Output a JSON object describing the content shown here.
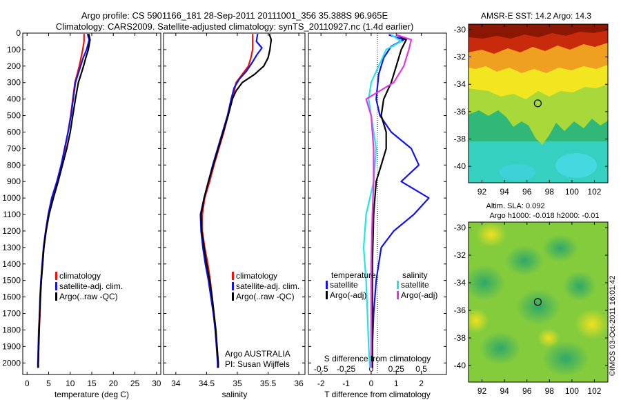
{
  "header": {
    "line1": "Argo profile: CS 5901166_181 28-Sep-2011 20111001_356 35.388S 96.965E",
    "line2": "Climatology: CARS2009. Satellite-adjusted climatology: synTS_20110927.nc (1.4d earlier)"
  },
  "side_label": "©IMOS 03-Oct-2011 16:01:42",
  "colors": {
    "climatology": "#ee1111",
    "satellite": "#1111ee",
    "argo": "#000000",
    "salinity_satellite": "#22e6e6",
    "salinity_argo": "#e633e6"
  },
  "chart_data": [
    {
      "type": "line",
      "name": "temperature-profile",
      "xlabel": "temperature (deg C)",
      "xlim": [
        -1,
        31
      ],
      "ylim": [
        2070,
        0
      ],
      "xticks": [
        0,
        5,
        10,
        15,
        20,
        25,
        30
      ],
      "yticks": [
        0,
        100,
        200,
        300,
        400,
        500,
        600,
        700,
        800,
        900,
        1000,
        1100,
        1200,
        1300,
        1400,
        1500,
        1600,
        1700,
        1800,
        1900,
        2000
      ],
      "legend": [
        "climatology",
        "satellite-adj. clim.",
        "Argo(..raw -QC)"
      ],
      "legend_placement": "lower-right",
      "series": [
        {
          "name": "climatology",
          "color_key": "climatology",
          "points": [
            [
              13.2,
              5
            ],
            [
              13.2,
              50
            ],
            [
              12.9,
              100
            ],
            [
              12.5,
              150
            ],
            [
              12.1,
              200
            ],
            [
              11.6,
              250
            ],
            [
              11.1,
              300
            ],
            [
              10.6,
              400
            ],
            [
              10.1,
              500
            ],
            [
              9.5,
              600
            ],
            [
              8.8,
              700
            ],
            [
              8.0,
              800
            ],
            [
              7.0,
              900
            ],
            [
              5.8,
              1000
            ],
            [
              5.0,
              1100
            ],
            [
              4.4,
              1200
            ],
            [
              3.9,
              1300
            ],
            [
              3.6,
              1400
            ],
            [
              3.3,
              1500
            ],
            [
              3.1,
              1600
            ],
            [
              3.0,
              1700
            ],
            [
              2.8,
              1800
            ],
            [
              2.7,
              1900
            ],
            [
              2.6,
              2000
            ],
            [
              2.6,
              2030
            ]
          ]
        },
        {
          "name": "satellite-adj. clim.",
          "color_key": "satellite",
          "points": [
            [
              14.0,
              5
            ],
            [
              14.4,
              40
            ],
            [
              13.8,
              100
            ],
            [
              13.0,
              150
            ],
            [
              12.4,
              200
            ],
            [
              11.8,
              250
            ],
            [
              11.2,
              300
            ],
            [
              10.7,
              400
            ],
            [
              10.2,
              500
            ],
            [
              9.5,
              600
            ],
            [
              8.7,
              700
            ],
            [
              7.9,
              800
            ],
            [
              6.9,
              900
            ],
            [
              5.7,
              1000
            ],
            [
              4.9,
              1100
            ],
            [
              4.3,
              1200
            ],
            [
              3.8,
              1300
            ],
            [
              3.5,
              1400
            ],
            [
              3.2,
              1500
            ],
            [
              3.0,
              1600
            ],
            [
              2.9,
              1700
            ],
            [
              2.7,
              1800
            ],
            [
              2.6,
              1900
            ],
            [
              2.5,
              2000
            ],
            [
              2.5,
              2030
            ]
          ]
        },
        {
          "name": "Argo(..raw -QC)",
          "color_key": "argo",
          "points": [
            [
              14.3,
              5
            ],
            [
              14.6,
              40
            ],
            [
              14.2,
              100
            ],
            [
              13.6,
              150
            ],
            [
              13.1,
              200
            ],
            [
              12.5,
              250
            ],
            [
              11.9,
              300
            ],
            [
              11.2,
              400
            ],
            [
              10.6,
              500
            ],
            [
              10.0,
              600
            ],
            [
              9.2,
              700
            ],
            [
              8.2,
              800
            ],
            [
              7.2,
              900
            ],
            [
              6.1,
              1000
            ],
            [
              5.1,
              1100
            ],
            [
              4.4,
              1200
            ],
            [
              3.9,
              1300
            ],
            [
              3.6,
              1400
            ],
            [
              3.3,
              1500
            ],
            [
              3.1,
              1600
            ],
            [
              2.9,
              1700
            ],
            [
              2.8,
              1800
            ],
            [
              2.7,
              1900
            ],
            [
              2.6,
              2000
            ],
            [
              2.6,
              2030
            ]
          ]
        }
      ]
    },
    {
      "type": "line",
      "name": "salinity-profile",
      "xlabel": "salinity",
      "xlim": [
        33.8,
        36.1
      ],
      "ylim": [
        2070,
        0
      ],
      "xticks": [
        34,
        34.5,
        35,
        35.5,
        36
      ],
      "legend": [
        "climatology",
        "satellite-adj. clim.",
        "Argo(..raw -QC)"
      ],
      "legend_placement": "lower-right",
      "annotation": [
        "Argo AUSTRALIA",
        "PI: Susan Wijffels"
      ],
      "series": [
        {
          "name": "climatology",
          "color_key": "climatology",
          "points": [
            [
              35.25,
              5
            ],
            [
              35.25,
              100
            ],
            [
              35.22,
              150
            ],
            [
              35.18,
              200
            ],
            [
              35.08,
              250
            ],
            [
              34.98,
              300
            ],
            [
              34.92,
              400
            ],
            [
              34.85,
              500
            ],
            [
              34.78,
              600
            ],
            [
              34.7,
              700
            ],
            [
              34.62,
              800
            ],
            [
              34.55,
              900
            ],
            [
              34.47,
              1000
            ],
            [
              34.43,
              1100
            ],
            [
              34.43,
              1200
            ],
            [
              34.47,
              1300
            ],
            [
              34.52,
              1400
            ],
            [
              34.56,
              1500
            ],
            [
              34.59,
              1600
            ],
            [
              34.62,
              1700
            ],
            [
              34.65,
              1800
            ],
            [
              34.67,
              1900
            ],
            [
              34.69,
              2000
            ],
            [
              34.69,
              2030
            ]
          ]
        },
        {
          "name": "satellite-adj. clim.",
          "color_key": "satellite",
          "points": [
            [
              35.33,
              5
            ],
            [
              35.31,
              50
            ],
            [
              35.4,
              90
            ],
            [
              35.32,
              130
            ],
            [
              35.24,
              180
            ],
            [
              35.15,
              230
            ],
            [
              35.03,
              280
            ],
            [
              34.95,
              330
            ],
            [
              34.9,
              400
            ],
            [
              34.84,
              500
            ],
            [
              34.76,
              600
            ],
            [
              34.68,
              700
            ],
            [
              34.6,
              800
            ],
            [
              34.53,
              900
            ],
            [
              34.46,
              1000
            ],
            [
              34.4,
              1100
            ],
            [
              34.41,
              1200
            ],
            [
              34.44,
              1300
            ],
            [
              34.48,
              1400
            ],
            [
              34.53,
              1500
            ],
            [
              34.57,
              1600
            ],
            [
              34.61,
              1700
            ],
            [
              34.64,
              1800
            ],
            [
              34.66,
              1900
            ],
            [
              34.68,
              2000
            ],
            [
              34.68,
              2030
            ]
          ]
        },
        {
          "name": "Argo(..raw -QC)",
          "color_key": "argo",
          "points": [
            [
              35.52,
              5
            ],
            [
              35.55,
              40
            ],
            [
              35.53,
              100
            ],
            [
              35.5,
              150
            ],
            [
              35.43,
              200
            ],
            [
              35.28,
              250
            ],
            [
              35.08,
              300
            ],
            [
              34.98,
              350
            ],
            [
              34.92,
              400
            ],
            [
              34.85,
              500
            ],
            [
              34.77,
              600
            ],
            [
              34.69,
              700
            ],
            [
              34.61,
              800
            ],
            [
              34.53,
              900
            ],
            [
              34.46,
              1000
            ],
            [
              34.41,
              1100
            ],
            [
              34.42,
              1200
            ],
            [
              34.46,
              1300
            ],
            [
              34.5,
              1400
            ],
            [
              34.55,
              1500
            ],
            [
              34.59,
              1600
            ],
            [
              34.62,
              1700
            ],
            [
              34.65,
              1800
            ],
            [
              34.67,
              1900
            ],
            [
              34.69,
              2000
            ],
            [
              34.69,
              2030
            ]
          ]
        }
      ]
    },
    {
      "type": "line",
      "name": "difference-profile",
      "xlabel": "T difference from climatology",
      "xlabel_top": "S difference from climatology",
      "xlim": [
        -2.5,
        3
      ],
      "ylim": [
        2070,
        0
      ],
      "xticks": [
        -2,
        -1,
        0,
        1,
        2
      ],
      "xticks_secondary": [
        {
          "value": -2,
          "label": "-0.5"
        },
        {
          "value": -1,
          "label": "-0.25"
        },
        {
          "value": 0,
          "label": "0"
        },
        {
          "value": 1,
          "label": "0.25"
        },
        {
          "value": 2,
          "label": "0.5"
        }
      ],
      "legend_temperature": {
        "title": "temperature",
        "entries": [
          "satellite",
          "Argo(-adj)"
        ]
      },
      "legend_salinity": {
        "title": "salinity",
        "entries": [
          "satellite",
          "Argo(-adj)"
        ]
      },
      "series": [
        {
          "name": "temperature satellite",
          "color_key": "satellite",
          "points": [
            [
              0.7,
              10
            ],
            [
              1.3,
              40
            ],
            [
              0.8,
              80
            ],
            [
              0.5,
              150
            ],
            [
              0.3,
              250
            ],
            [
              0.2,
              400
            ],
            [
              0.35,
              500
            ],
            [
              0.8,
              600
            ],
            [
              1.6,
              700
            ],
            [
              1.9,
              800
            ],
            [
              1.2,
              900
            ],
            [
              2.3,
              1000
            ],
            [
              1.7,
              1100
            ],
            [
              0.9,
              1200
            ],
            [
              0.4,
              1300
            ],
            [
              0.2,
              1500
            ],
            [
              0.1,
              1700
            ],
            [
              0.05,
              1900
            ],
            [
              0.05,
              2030
            ]
          ]
        },
        {
          "name": "temperature Argo(-adj)",
          "color_key": "argo",
          "points": [
            [
              1.0,
              10
            ],
            [
              1.4,
              40
            ],
            [
              1.2,
              100
            ],
            [
              1.0,
              200
            ],
            [
              0.8,
              300
            ],
            [
              0.5,
              400
            ],
            [
              0.4,
              500
            ],
            [
              0.6,
              600
            ],
            [
              0.6,
              700
            ],
            [
              0.4,
              800
            ],
            [
              0.2,
              900
            ],
            [
              0.1,
              1100
            ],
            [
              0.05,
              1400
            ],
            [
              0.05,
              1700
            ],
            [
              0.05,
              2030
            ]
          ]
        },
        {
          "name": "salinity satellite",
          "color_key": "salinity_satellite",
          "points": [
            [
              0.8,
              10
            ],
            [
              1.2,
              50
            ],
            [
              0.6,
              100
            ],
            [
              0.3,
              200
            ],
            [
              0.0,
              300
            ],
            [
              -0.1,
              400
            ],
            [
              0.0,
              500
            ],
            [
              0.2,
              700
            ],
            [
              0.1,
              900
            ],
            [
              -0.2,
              1100
            ],
            [
              -0.3,
              1300
            ],
            [
              -0.2,
              1500
            ],
            [
              -0.15,
              1700
            ],
            [
              -0.1,
              1900
            ],
            [
              -0.05,
              2030
            ]
          ]
        },
        {
          "name": "salinity Argo(-adj)",
          "color_key": "salinity_argo",
          "points": [
            [
              1.0,
              10
            ],
            [
              1.6,
              40
            ],
            [
              1.5,
              100
            ],
            [
              1.3,
              200
            ],
            [
              0.9,
              300
            ],
            [
              -0.2,
              400
            ],
            [
              0.0,
              500
            ],
            [
              0.1,
              700
            ],
            [
              0.1,
              900
            ],
            [
              0.05,
              1100
            ],
            [
              0.0,
              1400
            ],
            [
              0.0,
              1700
            ],
            [
              0.0,
              2030
            ]
          ]
        }
      ]
    },
    {
      "type": "heatmap",
      "name": "sst-map",
      "title": "AMSR-E SST: 14.2  Argo: 14.3",
      "xlim": [
        90.8,
        103.2
      ],
      "ylim": [
        -41.2,
        -29.6
      ],
      "xticks": [
        92,
        94,
        96,
        98,
        100,
        102
      ],
      "yticks": [
        -30,
        -32,
        -34,
        -36,
        -38,
        -40
      ],
      "marker": {
        "x": 96.965,
        "y": -35.388
      }
    },
    {
      "type": "heatmap",
      "name": "sla-map",
      "title": "Altim. SLA: 0.092",
      "subtitle": "Argo h1000: -0.018 h2000: -0.01",
      "xlim": [
        90.8,
        103.2
      ],
      "ylim": [
        -41.2,
        -29.6
      ],
      "xticks": [
        92,
        94,
        96,
        98,
        100,
        102
      ],
      "yticks": [
        -30,
        -32,
        -34,
        -36,
        -38,
        -40
      ],
      "marker": {
        "x": 96.965,
        "y": -35.388
      }
    }
  ]
}
